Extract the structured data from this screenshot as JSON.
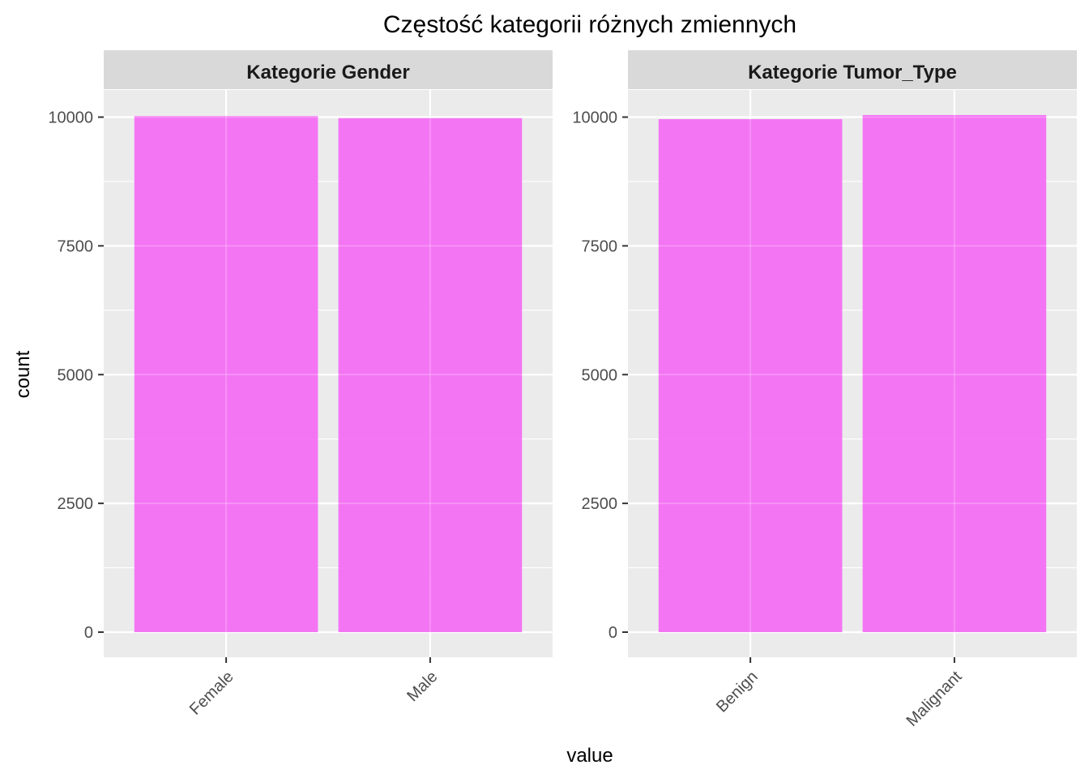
{
  "chart_data": {
    "type": "bar",
    "title": "Częstość kategorii różnych zmiennych",
    "xlabel": "value",
    "ylabel": "count",
    "ylim": [
      0,
      10000
    ],
    "yticks": [
      0,
      2500,
      5000,
      7500,
      10000
    ],
    "bar_color": "#f46ff4",
    "panel_bg": "#ebebeb",
    "strip_bg": "#d9d9d9",
    "panels": [
      {
        "strip": "Kategorie Gender",
        "categories": [
          "Female",
          "Male"
        ],
        "values": [
          10020,
          9980
        ]
      },
      {
        "strip": "Kategorie Tumor_Type",
        "categories": [
          "Benign",
          "Malignant"
        ],
        "values": [
          9960,
          10040
        ]
      }
    ]
  }
}
